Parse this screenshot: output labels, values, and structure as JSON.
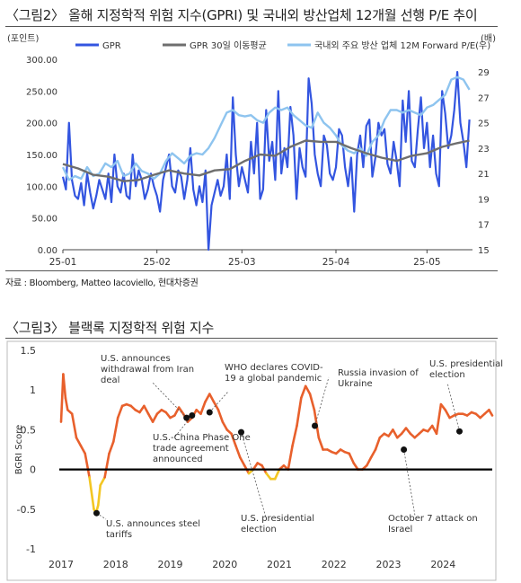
{
  "figure1": {
    "title": "〈그림2〉 올해 지정학적 위험 지수(GPRI) 및 국내외 방산업체 12개월 선행 P/E 추이",
    "source": "자료 : Bloomberg, Matteo Iacoviello,  현대차증권",
    "colors": {
      "gpr": "#3355e0",
      "ma": "#6e6e6e",
      "pe": "#8ec4ef"
    },
    "chart_data": {
      "type": "line",
      "ylabel": "(포인트)",
      "y2label": "(배)",
      "ylim": [
        0,
        300
      ],
      "y2lim": [
        15,
        30
      ],
      "yticks": [
        "300.00",
        "250.00",
        "200.00",
        "150.00",
        "100.00",
        "50.00",
        "0.00"
      ],
      "y2ticks": [
        "29",
        "27",
        "25",
        "23",
        "21",
        "19",
        "17",
        "15"
      ],
      "xticks": [
        "25-01",
        "25-02",
        "25-03",
        "25-04",
        "25-05"
      ],
      "x_range_days": [
        0,
        135
      ],
      "legend": [
        "GPR",
        "GPR 30일 이동평균",
        "국내외 주요 방산 업체 12M Forward P/E(우)"
      ],
      "series": [
        {
          "name": "GPR",
          "axis": "left",
          "x": [
            0,
            1,
            2,
            3,
            4,
            5,
            6,
            7,
            8,
            9,
            10,
            11,
            12,
            13,
            14,
            15,
            16,
            17,
            18,
            19,
            20,
            21,
            22,
            23,
            24,
            25,
            26,
            27,
            28,
            29,
            30,
            31,
            32,
            33,
            34,
            35,
            36,
            37,
            38,
            39,
            40,
            41,
            42,
            43,
            44,
            45,
            46,
            47,
            48,
            49,
            50,
            51,
            52,
            53,
            54,
            55,
            56,
            57,
            58,
            59,
            60,
            61,
            62,
            63,
            64,
            65,
            66,
            67,
            68,
            69,
            70,
            71,
            72,
            73,
            74,
            75,
            76,
            77,
            78,
            79,
            80,
            81,
            82,
            83,
            84,
            85,
            86,
            87,
            88,
            89,
            90,
            91,
            92,
            93,
            94,
            95,
            96,
            97,
            98,
            99,
            100,
            101,
            102,
            103,
            104,
            105,
            106,
            107,
            108,
            109,
            110,
            111,
            112,
            113,
            114,
            115,
            116,
            117,
            118,
            119,
            120,
            121,
            122,
            123,
            124,
            125,
            126,
            127,
            128,
            129,
            130,
            131,
            132,
            133,
            134
          ],
          "values": [
            115,
            95,
            200,
            110,
            85,
            80,
            105,
            70,
            120,
            90,
            65,
            85,
            110,
            95,
            80,
            120,
            75,
            150,
            100,
            90,
            120,
            85,
            80,
            150,
            100,
            125,
            110,
            80,
            95,
            120,
            100,
            85,
            60,
            110,
            130,
            150,
            100,
            90,
            125,
            115,
            80,
            110,
            160,
            95,
            70,
            100,
            75,
            125,
            0,
            70,
            90,
            110,
            85,
            100,
            150,
            80,
            240,
            150,
            100,
            130,
            110,
            90,
            170,
            120,
            200,
            80,
            95,
            220,
            140,
            170,
            110,
            250,
            120,
            160,
            130,
            225,
            180,
            80,
            160,
            130,
            115,
            270,
            230,
            150,
            120,
            100,
            180,
            165,
            120,
            110,
            130,
            190,
            180,
            130,
            100,
            145,
            60,
            150,
            180,
            130,
            195,
            205,
            115,
            145,
            200,
            180,
            190,
            135,
            120,
            170,
            140,
            100,
            235,
            170,
            250,
            140,
            130,
            190,
            240,
            160,
            200,
            130,
            180,
            120,
            100,
            250,
            215,
            160,
            180,
            220,
            280,
            200,
            170,
            130,
            205
          ]
        },
        {
          "name": "GPR 30일 이동평균",
          "axis": "left",
          "x": [
            0,
            5,
            10,
            15,
            20,
            25,
            30,
            35,
            40,
            45,
            50,
            55,
            60,
            65,
            70,
            75,
            80,
            85,
            90,
            95,
            100,
            105,
            110,
            115,
            120,
            125,
            130,
            134
          ],
          "values": [
            135,
            128,
            118,
            115,
            108,
            110,
            118,
            125,
            120,
            117,
            125,
            127,
            140,
            150,
            148,
            162,
            172,
            170,
            170,
            160,
            152,
            145,
            140,
            148,
            152,
            162,
            168,
            172
          ]
        },
        {
          "name": "국내외 주요 방산 업체 12M Forward P/E(우)",
          "axis": "right",
          "x": [
            0,
            2,
            4,
            6,
            8,
            10,
            12,
            14,
            16,
            18,
            20,
            22,
            24,
            26,
            28,
            30,
            32,
            34,
            36,
            38,
            40,
            42,
            44,
            46,
            48,
            50,
            52,
            54,
            56,
            58,
            60,
            62,
            64,
            66,
            68,
            70,
            72,
            74,
            76,
            78,
            80,
            82,
            84,
            86,
            88,
            90,
            92,
            94,
            96,
            98,
            100,
            102,
            104,
            106,
            108,
            110,
            112,
            114,
            116,
            118,
            120,
            122,
            124,
            126,
            128,
            130,
            132,
            134
          ],
          "values": [
            21.5,
            20.5,
            20.8,
            20.6,
            21.5,
            20.8,
            21.0,
            21.8,
            21.5,
            22.0,
            20.8,
            21.0,
            21.8,
            21.2,
            21.0,
            20.6,
            21.0,
            22.0,
            22.6,
            22.2,
            21.8,
            22.4,
            22.6,
            22.5,
            23.0,
            23.8,
            24.8,
            25.8,
            26.0,
            25.6,
            25.5,
            25.6,
            25.2,
            25.0,
            25.8,
            26.2,
            26.0,
            26.2,
            25.6,
            25.2,
            24.8,
            24.6,
            25.8,
            25.0,
            24.6,
            24.0,
            23.2,
            22.8,
            22.6,
            23.0,
            22.4,
            23.5,
            24.0,
            25.2,
            26.0,
            26.0,
            25.8,
            26.0,
            25.8,
            25.6,
            26.2,
            26.4,
            26.8,
            27.2,
            28.4,
            28.6,
            28.4,
            27.6
          ]
        }
      ]
    }
  },
  "figure2": {
    "title": "〈그림3〉 블랙록 지정학적 위험 지수",
    "colors": {
      "line": "#e8602c",
      "negative": "#f3c623",
      "zero": "#000000"
    },
    "chart_data": {
      "type": "line",
      "ylabel": "BGRI Score",
      "ylim": [
        -1,
        1.5
      ],
      "yticks": [
        "1.5",
        "1",
        "0.5",
        "0",
        "-0.5",
        "-1"
      ],
      "xticks": [
        "2017",
        "2018",
        "2019",
        "2020",
        "2021",
        "2022",
        "2023",
        "2024"
      ],
      "x_range": [
        2017.0,
        2024.9
      ],
      "series": [
        {
          "name": "BGRI",
          "x": [
            2017.0,
            2017.04,
            2017.08,
            2017.12,
            2017.2,
            2017.28,
            2017.36,
            2017.44,
            2017.52,
            2017.6,
            2017.64,
            2017.68,
            2017.72,
            2017.8,
            2017.88,
            2017.96,
            2018.04,
            2018.12,
            2018.2,
            2018.28,
            2018.36,
            2018.44,
            2018.52,
            2018.6,
            2018.68,
            2018.76,
            2018.84,
            2018.92,
            2019.0,
            2019.08,
            2019.16,
            2019.24,
            2019.32,
            2019.4,
            2019.48,
            2019.56,
            2019.64,
            2019.72,
            2019.8,
            2019.88,
            2019.96,
            2020.04,
            2020.12,
            2020.2,
            2020.28,
            2020.36,
            2020.44,
            2020.52,
            2020.6,
            2020.68,
            2020.76,
            2020.84,
            2020.92,
            2021.0,
            2021.08,
            2021.16,
            2021.24,
            2021.32,
            2021.4,
            2021.48,
            2021.56,
            2021.64,
            2021.72,
            2021.8,
            2021.88,
            2021.96,
            2022.04,
            2022.12,
            2022.2,
            2022.28,
            2022.36,
            2022.44,
            2022.52,
            2022.6,
            2022.68,
            2022.76,
            2022.84,
            2022.92,
            2023.0,
            2023.08,
            2023.16,
            2023.24,
            2023.32,
            2023.4,
            2023.48,
            2023.56,
            2023.64,
            2023.72,
            2023.8,
            2023.88,
            2023.96,
            2024.04,
            2024.12,
            2024.2,
            2024.28,
            2024.36,
            2024.44,
            2024.52,
            2024.6,
            2024.68,
            2024.76,
            2024.84,
            2024.9
          ],
          "values": [
            0.6,
            1.2,
            0.9,
            0.75,
            0.7,
            0.4,
            0.3,
            0.2,
            -0.1,
            -0.5,
            -0.55,
            -0.45,
            -0.2,
            -0.1,
            0.2,
            0.35,
            0.65,
            0.8,
            0.82,
            0.8,
            0.75,
            0.72,
            0.8,
            0.7,
            0.6,
            0.7,
            0.75,
            0.72,
            0.65,
            0.68,
            0.78,
            0.7,
            0.6,
            0.65,
            0.75,
            0.7,
            0.85,
            0.95,
            0.85,
            0.75,
            0.6,
            0.5,
            0.45,
            0.3,
            0.15,
            0.05,
            -0.05,
            0.0,
            0.08,
            0.05,
            -0.05,
            -0.12,
            -0.12,
            0.0,
            0.05,
            0.0,
            0.3,
            0.55,
            0.9,
            1.05,
            0.95,
            0.75,
            0.4,
            0.25,
            0.25,
            0.22,
            0.2,
            0.25,
            0.22,
            0.2,
            0.08,
            0.0,
            0.0,
            0.05,
            0.15,
            0.25,
            0.4,
            0.45,
            0.42,
            0.5,
            0.4,
            0.45,
            0.52,
            0.45,
            0.4,
            0.45,
            0.5,
            0.48,
            0.55,
            0.45,
            0.82,
            0.75,
            0.65,
            0.68,
            0.7,
            0.7,
            0.68,
            0.72,
            0.7,
            0.65,
            0.7,
            0.75,
            0.68
          ]
        }
      ],
      "annotations": [
        {
          "label": "U.S. announces withdrawal from Iran deal",
          "x": 2019.3,
          "y": 0.65
        },
        {
          "label": "WHO declares COVID-19 a global pandemic",
          "x": 2019.72,
          "y": 0.72
        },
        {
          "label": "U.S.-China Phase One trade agreement announced",
          "x": 2019.4,
          "y": 0.68
        },
        {
          "label": "Russia invasion of Ukraine",
          "x": 2021.65,
          "y": 0.55
        },
        {
          "label": "U.S. presidential election",
          "x": 2020.3,
          "y": 0.47
        },
        {
          "label": "U.S. announces steel tariffs",
          "x": 2017.65,
          "y": -0.55
        },
        {
          "label": "October 7 attack on Israel",
          "x": 2023.28,
          "y": 0.25
        },
        {
          "label": "U.S. presidential election",
          "x": 2024.3,
          "y": 0.48
        }
      ]
    }
  }
}
